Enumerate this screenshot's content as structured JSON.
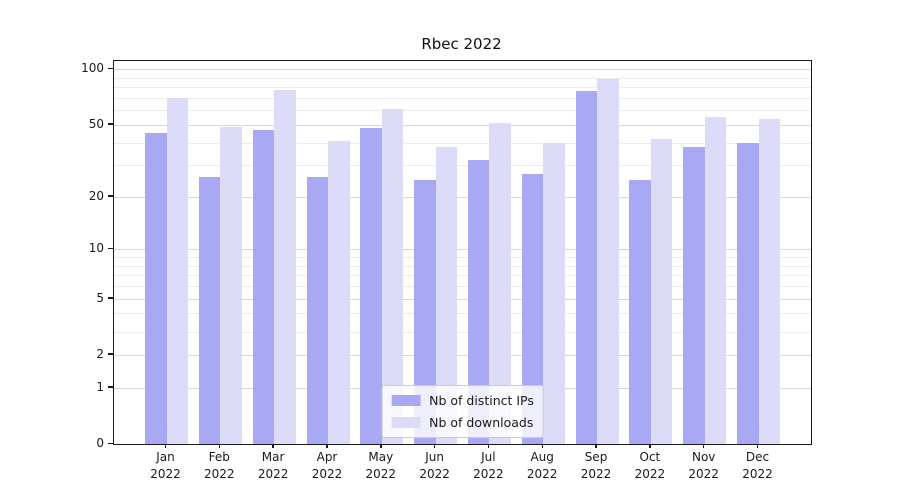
{
  "title": "Rbec 2022",
  "colors": {
    "ips_bar": "#a8a8f4",
    "downloads_bar": "#dcdcf8",
    "grid_major": "#d8d8d8",
    "grid_minor": "#ececec",
    "spine": "#1a1a1a",
    "legend_border": "#cccccc"
  },
  "legend": {
    "position": "lower center",
    "items": [
      {
        "label": "Nb of distinct IPs",
        "color_key": "ips_bar"
      },
      {
        "label": "Nb of downloads",
        "color_key": "downloads_bar"
      }
    ]
  },
  "chart_data": {
    "type": "bar",
    "title": "Rbec 2022",
    "categories": [
      "Jan 2022",
      "Feb 2022",
      "Mar 2022",
      "Apr 2022",
      "May 2022",
      "Jun 2022",
      "Jul 2022",
      "Aug 2022",
      "Sep 2022",
      "Oct 2022",
      "Nov 2022",
      "Dec 2022"
    ],
    "series": [
      {
        "name": "Nb of distinct IPs",
        "values": [
          45,
          26,
          47,
          26,
          48,
          25,
          32,
          27,
          76,
          25,
          38,
          40
        ]
      },
      {
        "name": "Nb of downloads",
        "values": [
          70,
          49,
          77,
          41,
          61,
          38,
          51,
          40,
          89,
          42,
          55,
          54
        ]
      }
    ],
    "xlabel": "",
    "ylabel": "",
    "yscale": "log(1+y)",
    "ylim": [
      0,
      111
    ],
    "yticks": [
      0,
      1,
      2,
      5,
      10,
      20,
      50,
      100
    ],
    "yticks_minor": [
      3,
      4,
      6,
      7,
      8,
      9,
      30,
      40,
      60,
      70,
      80,
      90
    ],
    "grid": "horizontal",
    "legend_position": "lower center"
  }
}
